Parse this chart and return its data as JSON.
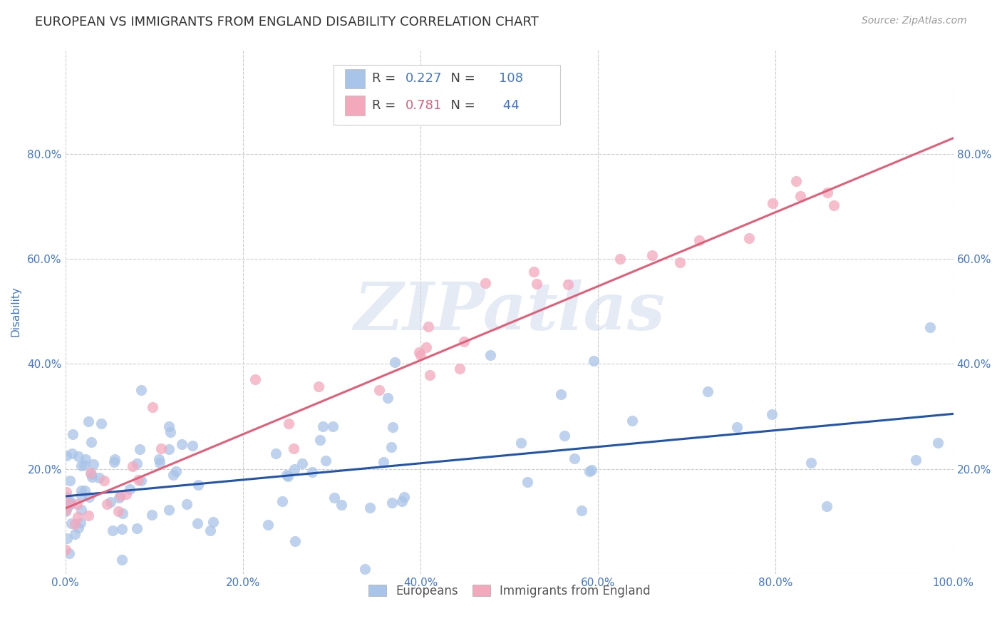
{
  "title": "EUROPEAN VS IMMIGRANTS FROM ENGLAND DISABILITY CORRELATION CHART",
  "source": "Source: ZipAtlas.com",
  "ylabel": "Disability",
  "watermark": "ZIPatlas",
  "blue_R": 0.227,
  "blue_N": 108,
  "pink_R": 0.781,
  "pink_N": 44,
  "blue_color": "#a8c4e8",
  "blue_line_color": "#2255aa",
  "pink_color": "#f4a8bc",
  "pink_line_color": "#e0607a",
  "background_color": "#ffffff",
  "grid_color": "#cccccc",
  "title_color": "#333333",
  "source_color": "#999999",
  "axis_label_color": "#4477cc",
  "legend_R_color": "#444444",
  "xlim": [
    0,
    1
  ],
  "ylim": [
    0,
    1
  ],
  "xticks": [
    0.0,
    0.2,
    0.4,
    0.6,
    0.8,
    1.0
  ],
  "xtick_labels": [
    "0.0%",
    "20.0%",
    "40.0%",
    "60.0%",
    "80.0%",
    "100.0%"
  ],
  "yticks": [
    0.0,
    0.2,
    0.4,
    0.6,
    0.8
  ],
  "ytick_labels": [
    "",
    "20.0%",
    "40.0%",
    "60.0%",
    "80.0%"
  ],
  "blue_line_x0": 0.0,
  "blue_line_y0": 0.148,
  "blue_line_x1": 1.0,
  "blue_line_y1": 0.305,
  "pink_line_x0": 0.0,
  "pink_line_y0": 0.125,
  "pink_line_x1": 1.0,
  "pink_line_y1": 0.83,
  "figsize": [
    14.06,
    8.92
  ]
}
